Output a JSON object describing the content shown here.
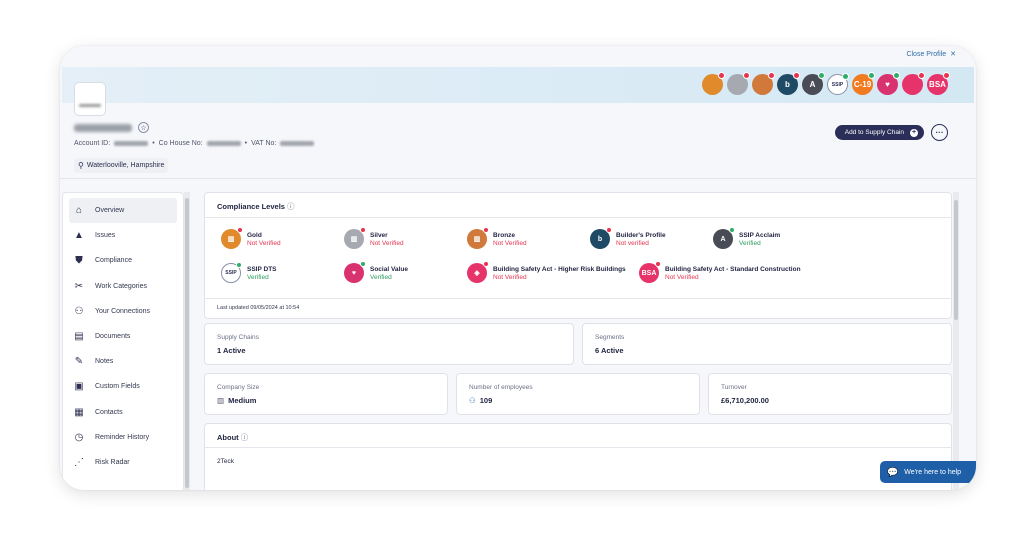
{
  "header": {
    "close_profile": "Close Profile",
    "close_icon": "✕",
    "account_id_label": "Account ID:",
    "co_house_label": "Co House No:",
    "vat_label": "VAT No:",
    "location": "Waterlooville, Hampshire",
    "add_supply_label": "Add to Supply Chain",
    "more_label": "···"
  },
  "header_badges": [
    {
      "name": "gold-badge",
      "color": "#e08a2c",
      "text": "",
      "status": "red"
    },
    {
      "name": "silver-badge",
      "color": "#a6a9b0",
      "text": "",
      "status": "red"
    },
    {
      "name": "bronze-badge",
      "color": "#d0793a",
      "text": "",
      "status": "red"
    },
    {
      "name": "builders-profile-badge",
      "color": "#1f4a66",
      "text": "b",
      "status": "red"
    },
    {
      "name": "ssip-acclaim-badge",
      "color": "#4a4c55",
      "text": "A",
      "status": "green"
    },
    {
      "name": "ssip-dts-badge",
      "color": "#ffffff",
      "text": "SSIP",
      "status": "green"
    },
    {
      "name": "covid-badge",
      "color": "#f07b20",
      "text": "C-19",
      "status": "green"
    },
    {
      "name": "social-value-badge",
      "color": "#d8326f",
      "text": "♥",
      "status": "green"
    },
    {
      "name": "bsa-hrb-badge",
      "color": "#e6336a",
      "text": "",
      "status": "red"
    },
    {
      "name": "bsa-badge",
      "color": "#e6336a",
      "text": "BSA",
      "status": "red"
    }
  ],
  "sidebar": {
    "items": [
      {
        "label": "Overview",
        "icon": "⌂",
        "icon_name": "home-icon",
        "active": true
      },
      {
        "label": "Issues",
        "icon": "▲",
        "icon_name": "warning-icon",
        "active": false
      },
      {
        "label": "Compliance",
        "icon": "⛊",
        "icon_name": "shield-icon",
        "active": false
      },
      {
        "label": "Work Categories",
        "icon": "✂",
        "icon_name": "tools-icon",
        "active": false
      },
      {
        "label": "Your Connections",
        "icon": "⚇",
        "icon_name": "connections-icon",
        "active": false
      },
      {
        "label": "Documents",
        "icon": "▤",
        "icon_name": "document-icon",
        "active": false
      },
      {
        "label": "Notes",
        "icon": "✎",
        "icon_name": "pencil-icon",
        "active": false
      },
      {
        "label": "Custom Fields",
        "icon": "▣",
        "icon_name": "custom-fields-icon",
        "active": false
      },
      {
        "label": "Contacts",
        "icon": "▦",
        "icon_name": "contacts-icon",
        "active": false
      },
      {
        "label": "Reminder History",
        "icon": "◷",
        "icon_name": "clock-icon",
        "active": false
      },
      {
        "label": "Risk Radar",
        "icon": "⋰",
        "icon_name": "radar-icon",
        "active": false
      }
    ]
  },
  "compliance": {
    "title": "Compliance Levels",
    "info_icon": "ⓘ",
    "levels": [
      {
        "name": "Gold",
        "status": "Not Verified",
        "state": "red",
        "color": "#e08a2c",
        "glyph": "▥",
        "dot": "red"
      },
      {
        "name": "Silver",
        "status": "Not Verified",
        "state": "red",
        "color": "#a6a9b0",
        "glyph": "▥",
        "dot": "red"
      },
      {
        "name": "Bronze",
        "status": "Not Verified",
        "state": "red",
        "color": "#d0793a",
        "glyph": "▥",
        "dot": "red"
      },
      {
        "name": "Builder's Profile",
        "status": "Not verified",
        "state": "red",
        "color": "#1f4a66",
        "glyph": "b",
        "dot": "red"
      },
      {
        "name": "SSIP Acclaim",
        "status": "Verified",
        "state": "green",
        "color": "#4a4c55",
        "glyph": "A",
        "dot": "green"
      },
      {
        "name": "SSIP DTS",
        "status": "Verified",
        "state": "green",
        "color": "#ffffff",
        "glyph": "SSIP",
        "dot": "green"
      },
      {
        "name": "Social Value",
        "status": "Verified",
        "state": "green",
        "color": "#d8326f",
        "glyph": "♥",
        "dot": "green"
      },
      {
        "name": "Building Safety Act - Higher Risk Buildings",
        "status": "Not Verified",
        "state": "red",
        "color": "#e6336a",
        "glyph": "◈",
        "dot": "red"
      },
      {
        "name": "Building Safety Act - Standard Construction",
        "status": "Not Verified",
        "state": "red",
        "color": "#e6336a",
        "glyph": "BSA",
        "dot": "red"
      }
    ],
    "last_updated": "Last updated 09/05/2024 at 10:54"
  },
  "stats": {
    "supply_chains_label": "Supply Chains",
    "supply_chains_value": "1 Active",
    "segments_label": "Segments",
    "segments_value": "6 Active",
    "company_size_label": "Company Size",
    "company_size_value": "Medium",
    "employees_label": "Number of employees",
    "employees_value": "109",
    "turnover_label": "Turnover",
    "turnover_value": "£6,710,200.00"
  },
  "about": {
    "title": "About",
    "text": "2Teck"
  },
  "chat": {
    "label": "We're here to help"
  }
}
